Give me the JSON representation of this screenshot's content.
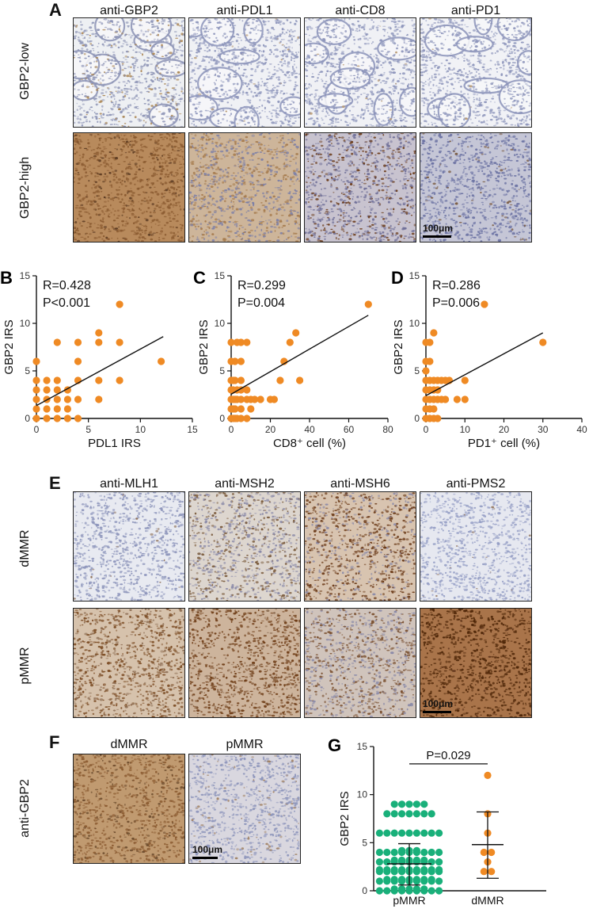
{
  "panels": {
    "A": {
      "letter": "A",
      "columns": [
        "anti-GBP2",
        "anti-PDL1",
        "anti-CD8",
        "anti-PD1"
      ],
      "rows": [
        "GBP2-low",
        "GBP2-high"
      ],
      "scale_bar": "100μm",
      "tiles": [
        [
          {
            "base": "#eef0f3",
            "dots": "#8c93b5",
            "brown": "#a9834f",
            "density": 0.15,
            "gland": true
          },
          {
            "base": "#f0f1f5",
            "dots": "#8d95bb",
            "brown": "#b89870",
            "density": 0.02,
            "gland": true
          },
          {
            "base": "#f0f1f5",
            "dots": "#8d95bb",
            "brown": "#b89870",
            "density": 0.02,
            "gland": true
          },
          {
            "base": "#f1f2f6",
            "dots": "#8d95bb",
            "brown": "#b89870",
            "density": 0.01,
            "gland": true
          }
        ],
        [
          {
            "base": "#b88a5c",
            "dots": "#5a3a22",
            "brown": "#8a5a30",
            "density": 0.85,
            "gland": false
          },
          {
            "base": "#cdb59a",
            "dots": "#7c7fa6",
            "brown": "#a57a4c",
            "density": 0.45,
            "gland": false
          },
          {
            "base": "#c8c3cf",
            "dots": "#6f6f98",
            "brown": "#6a3a18",
            "density": 0.35,
            "gland": false
          },
          {
            "base": "#c5c6d6",
            "dots": "#6b72a3",
            "brown": "#7a5a40",
            "density": 0.08,
            "gland": false
          }
        ]
      ]
    },
    "B": {
      "letter": "B"
    },
    "C": {
      "letter": "C"
    },
    "D": {
      "letter": "D"
    },
    "E": {
      "letter": "E",
      "columns": [
        "anti-MLH1",
        "anti-MSH2",
        "anti-MSH6",
        "anti-PMS2"
      ],
      "rows": [
        "dMMR",
        "pMMR"
      ],
      "scale_bar": "100μm",
      "tiles": [
        [
          {
            "base": "#e8eaf1",
            "dots": "#8d95bb",
            "brown": "#8a6a50",
            "density": 0.02,
            "gland": false
          },
          {
            "base": "#ddd6cf",
            "dots": "#8a8aa8",
            "brown": "#7a5a3c",
            "density": 0.45,
            "gland": false
          },
          {
            "base": "#d8c4b0",
            "dots": "#8a8aa8",
            "brown": "#6b3a18",
            "density": 0.7,
            "gland": false
          },
          {
            "base": "#e6e8f0",
            "dots": "#97a0c6",
            "brown": "#8a6a50",
            "density": 0.02,
            "gland": false
          }
        ],
        [
          {
            "base": "#d6c2ac",
            "dots": "#8a6a50",
            "brown": "#7a4a22",
            "density": 0.75,
            "gland": false
          },
          {
            "base": "#cdb49c",
            "dots": "#8a6a50",
            "brown": "#6e3c16",
            "density": 0.85,
            "gland": false
          },
          {
            "base": "#d0c4bc",
            "dots": "#8a8aa8",
            "brown": "#7a5030",
            "density": 0.55,
            "gland": false
          },
          {
            "base": "#a9744a",
            "dots": "#5a3018",
            "brown": "#4e2608",
            "density": 0.95,
            "gland": false
          }
        ]
      ]
    },
    "F": {
      "letter": "F",
      "columns": [
        "dMMR",
        "pMMR"
      ],
      "row_label": "anti-GBP2",
      "scale_bar": "100μm",
      "tiles": [
        {
          "base": "#c09a70",
          "dots": "#6a4a2c",
          "brown": "#8a5a30",
          "density": 0.8,
          "gland": false
        },
        {
          "base": "#d9d7df",
          "dots": "#8d95bb",
          "brown": "#a08060",
          "density": 0.1,
          "gland": false
        }
      ]
    },
    "G": {
      "letter": "G"
    }
  },
  "chart_data": [
    {
      "panel": "B",
      "type": "scatter",
      "xlabel": "PDL1 IRS",
      "ylabel": "GBP2 IRS",
      "xlim": [
        0,
        15
      ],
      "ylim": [
        0,
        15
      ],
      "xticks": [
        0,
        5,
        10,
        15
      ],
      "yticks": [
        0,
        5,
        10,
        15
      ],
      "annotations": [
        "R=0.428",
        "P<0.001"
      ],
      "color": "#ef8a24",
      "points": [
        [
          0,
          0
        ],
        [
          0,
          1
        ],
        [
          0,
          2
        ],
        [
          0,
          3
        ],
        [
          0,
          4
        ],
        [
          0,
          6
        ],
        [
          1,
          0
        ],
        [
          1,
          1
        ],
        [
          1,
          2
        ],
        [
          1,
          3
        ],
        [
          1,
          4
        ],
        [
          2,
          0
        ],
        [
          2,
          1
        ],
        [
          2,
          2
        ],
        [
          2,
          3
        ],
        [
          2,
          4
        ],
        [
          2,
          8
        ],
        [
          3,
          0
        ],
        [
          3,
          1
        ],
        [
          3,
          2
        ],
        [
          3,
          3
        ],
        [
          4,
          0
        ],
        [
          4,
          2
        ],
        [
          4,
          4
        ],
        [
          4,
          6
        ],
        [
          4,
          8
        ],
        [
          6,
          2
        ],
        [
          6,
          4
        ],
        [
          6,
          8
        ],
        [
          6,
          9
        ],
        [
          8,
          4
        ],
        [
          8,
          8
        ],
        [
          8,
          12
        ],
        [
          12,
          6
        ]
      ],
      "fit": [
        [
          0,
          1.35
        ],
        [
          12.2,
          8.6
        ]
      ]
    },
    {
      "panel": "C",
      "type": "scatter",
      "xlabel": "CD8⁺ cell (%)",
      "ylabel": "GBP2 IRS",
      "xlim": [
        0,
        80
      ],
      "ylim": [
        0,
        15
      ],
      "xticks": [
        0,
        20,
        40,
        60,
        80
      ],
      "yticks": [
        0,
        5,
        10,
        15
      ],
      "annotations": [
        "R=0.299",
        "P=0.004"
      ],
      "color": "#ef8a24",
      "points": [
        [
          0,
          0
        ],
        [
          0,
          1
        ],
        [
          0,
          2
        ],
        [
          0,
          3
        ],
        [
          0,
          4
        ],
        [
          0,
          6
        ],
        [
          0,
          8
        ],
        [
          1,
          0
        ],
        [
          1,
          1
        ],
        [
          1,
          2
        ],
        [
          1,
          3
        ],
        [
          1,
          4
        ],
        [
          2,
          0
        ],
        [
          2,
          1
        ],
        [
          2,
          2
        ],
        [
          2,
          4
        ],
        [
          2,
          6
        ],
        [
          3,
          0
        ],
        [
          3,
          2
        ],
        [
          3,
          3
        ],
        [
          3,
          8
        ],
        [
          5,
          0
        ],
        [
          5,
          1
        ],
        [
          5,
          2
        ],
        [
          5,
          3
        ],
        [
          5,
          4
        ],
        [
          5,
          6
        ],
        [
          5,
          8
        ],
        [
          8,
          0
        ],
        [
          8,
          2
        ],
        [
          8,
          3
        ],
        [
          8,
          8
        ],
        [
          10,
          1
        ],
        [
          10,
          2
        ],
        [
          12,
          2
        ],
        [
          15,
          2
        ],
        [
          20,
          2
        ],
        [
          22,
          2
        ],
        [
          25,
          4
        ],
        [
          27,
          6
        ],
        [
          30,
          8
        ],
        [
          33,
          9
        ],
        [
          35,
          4
        ],
        [
          70,
          12
        ]
      ],
      "fit": [
        [
          0,
          2.55
        ],
        [
          70,
          10.85
        ]
      ]
    },
    {
      "panel": "D",
      "type": "scatter",
      "xlabel": "PD1⁺ cell (%)",
      "ylabel": "GBP2 IRS",
      "xlim": [
        0,
        40
      ],
      "ylim": [
        0,
        15
      ],
      "xticks": [
        0,
        10,
        20,
        30,
        40
      ],
      "yticks": [
        0,
        5,
        10,
        15
      ],
      "annotations": [
        "R=0.286",
        "P=0.006"
      ],
      "color": "#ef8a24",
      "points": [
        [
          0,
          0
        ],
        [
          0,
          1
        ],
        [
          0,
          2
        ],
        [
          0,
          3
        ],
        [
          0,
          4
        ],
        [
          0,
          5
        ],
        [
          0,
          6
        ],
        [
          0,
          8
        ],
        [
          1,
          0
        ],
        [
          1,
          1
        ],
        [
          1,
          2
        ],
        [
          1,
          3
        ],
        [
          1,
          4
        ],
        [
          1,
          6
        ],
        [
          1,
          8
        ],
        [
          2,
          0
        ],
        [
          2,
          1
        ],
        [
          2,
          2
        ],
        [
          2,
          3
        ],
        [
          2,
          4
        ],
        [
          2,
          9
        ],
        [
          3,
          0
        ],
        [
          3,
          2
        ],
        [
          3,
          3
        ],
        [
          3,
          4
        ],
        [
          4,
          2
        ],
        [
          4,
          4
        ],
        [
          5,
          2
        ],
        [
          5,
          4
        ],
        [
          6,
          4
        ],
        [
          8,
          2
        ],
        [
          10,
          2
        ],
        [
          10,
          4
        ],
        [
          15,
          12
        ],
        [
          30,
          8
        ]
      ],
      "fit": [
        [
          0,
          2.4
        ],
        [
          30,
          9.0
        ]
      ]
    },
    {
      "panel": "G",
      "type": "scatter",
      "categories": [
        "pMMR",
        "dMMR"
      ],
      "ylabel": "GBP2 IRS",
      "ylim": [
        0,
        15
      ],
      "yticks": [
        0,
        5,
        10,
        15
      ],
      "annotations": [
        "P=0.029"
      ],
      "series": [
        {
          "category": "pMMR",
          "color": "#19b07a",
          "mean": 2.8,
          "sd_low": 0.6,
          "sd_high": 4.9,
          "counts": {
            "0": 14,
            "1": 16,
            "2": 18,
            "3": 14,
            "4": 12,
            "6": 9,
            "8": 7,
            "9": 5
          }
        },
        {
          "category": "dMMR",
          "color": "#ef8a24",
          "mean": 4.8,
          "sd_low": 1.3,
          "sd_high": 8.2,
          "counts": {
            "2": 2,
            "3": 1,
            "4": 2,
            "6": 1,
            "8": 1,
            "12": 1
          }
        }
      ]
    }
  ]
}
